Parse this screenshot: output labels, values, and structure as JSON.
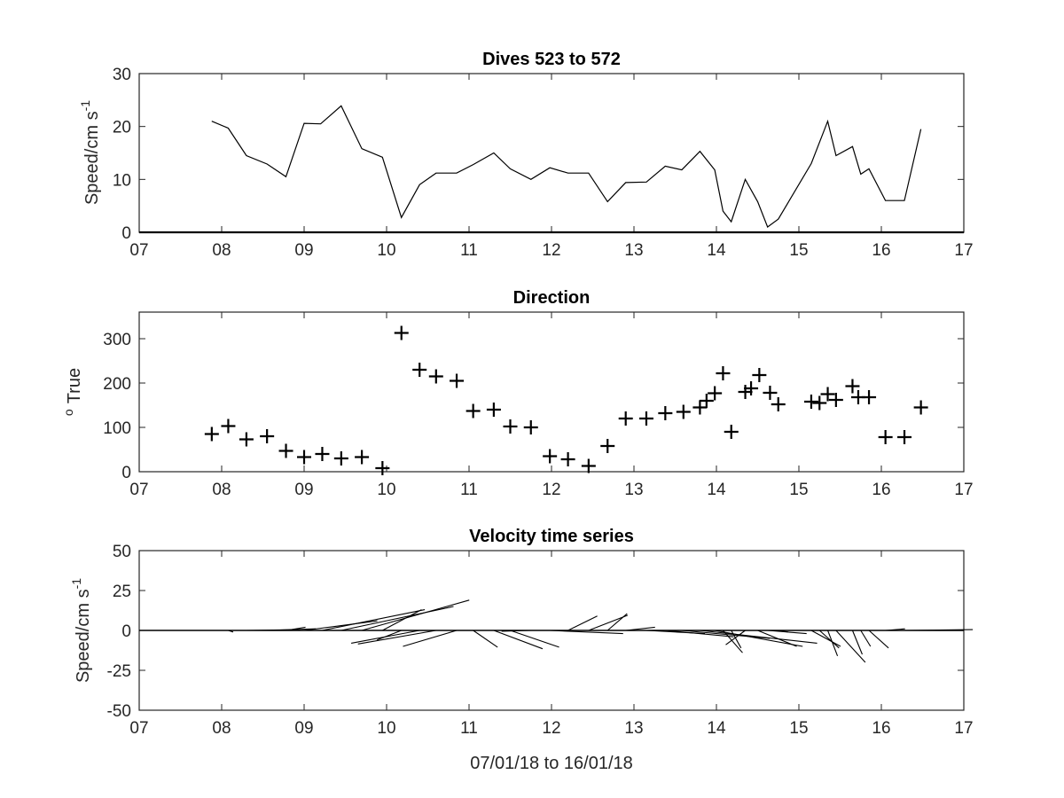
{
  "chart_data": [
    {
      "type": "line",
      "title": "Dives 523 to 572",
      "xlabel": "",
      "ylabel": "Speed/cm s",
      "ylabel_superscript": "-1",
      "xlim": [
        7,
        17
      ],
      "ylim": [
        0,
        30
      ],
      "xticks": [
        "07",
        "08",
        "09",
        "10",
        "11",
        "12",
        "13",
        "14",
        "15",
        "16",
        "17"
      ],
      "yticks": [
        "0",
        "10",
        "20",
        "30"
      ],
      "grid": false,
      "line_color": "#000000",
      "series": [
        {
          "x": [
            7.88,
            8.08,
            8.3,
            8.55,
            8.78,
            9.0,
            9.2,
            9.45,
            9.7,
            9.95,
            10.18,
            10.4,
            10.6,
            10.85,
            11.05,
            11.3,
            11.5,
            11.75,
            11.98,
            12.2,
            12.45,
            12.68,
            12.9,
            13.15,
            13.38,
            13.58,
            13.8,
            13.98,
            14.08,
            14.18,
            14.35,
            14.5,
            14.62,
            14.75,
            15.15,
            15.35,
            15.45,
            15.65,
            15.75,
            15.85,
            16.05,
            16.28,
            16.48
          ],
          "y": [
            21,
            19.7,
            14.5,
            12.9,
            10.5,
            20.6,
            20.5,
            23.9,
            15.8,
            14.2,
            2.8,
            9,
            11.2,
            11.2,
            12.8,
            15,
            12,
            10,
            12.2,
            11.2,
            11.2,
            5.8,
            9.4,
            9.5,
            12.5,
            11.8,
            15.3,
            11.8,
            4,
            2,
            10,
            5.8,
            1,
            2.5,
            13,
            21,
            14.5,
            16.2,
            11,
            12,
            6,
            6,
            19.5
          ]
        }
      ]
    },
    {
      "type": "scatter",
      "title": "Direction",
      "xlabel": "",
      "ylabel": "True",
      "ylabel_superscript": "o",
      "xlim": [
        7,
        17
      ],
      "ylim": [
        0,
        360
      ],
      "xticks": [
        "07",
        "08",
        "09",
        "10",
        "11",
        "12",
        "13",
        "14",
        "15",
        "16",
        "17"
      ],
      "yticks": [
        "0",
        "100",
        "200",
        "300"
      ],
      "grid": false,
      "marker": "+",
      "series": [
        {
          "x": [
            7.88,
            8.08,
            8.3,
            8.55,
            8.78,
            9.0,
            9.22,
            9.45,
            9.7,
            9.95,
            10.18,
            10.4,
            10.6,
            10.85,
            11.05,
            11.3,
            11.5,
            11.75,
            11.98,
            12.2,
            12.45,
            12.68,
            12.9,
            13.15,
            13.38,
            13.6,
            13.8,
            13.88,
            13.98,
            14.08,
            14.18,
            14.35,
            14.42,
            14.52,
            14.65,
            14.75,
            15.15,
            15.25,
            15.35,
            15.45,
            15.65,
            15.72,
            15.85,
            16.05,
            16.28,
            16.48
          ],
          "y": [
            85,
            103,
            73,
            80,
            47,
            33,
            40,
            30,
            33,
            8,
            313,
            230,
            215,
            205,
            137,
            140,
            102,
            100,
            35,
            28,
            13,
            58,
            120,
            120,
            132,
            135,
            145,
            160,
            177,
            222,
            90,
            180,
            188,
            218,
            178,
            152,
            158,
            155,
            175,
            162,
            193,
            168,
            168,
            78,
            78,
            145
          ]
        }
      ]
    },
    {
      "type": "line",
      "subtype": "stick",
      "title": "Velocity time series",
      "xlabel": "07/01/18 to 16/01/18",
      "ylabel": "Speed/cm s",
      "ylabel_superscript": "-1",
      "xlim": [
        7,
        17
      ],
      "ylim": [
        -50,
        50
      ],
      "xticks": [
        "07",
        "08",
        "09",
        "10",
        "11",
        "12",
        "13",
        "14",
        "15",
        "16",
        "17"
      ],
      "yticks": [
        "-50",
        "-25",
        "0",
        "25",
        "50"
      ],
      "grid": false,
      "zero_line": true,
      "sticks": {
        "x": [
          8.08,
          8.3,
          8.55,
          8.78,
          9.0,
          9.22,
          9.45,
          9.7,
          9.95,
          10.18,
          10.4,
          10.6,
          10.85,
          11.05,
          11.3,
          11.5,
          11.75,
          11.98,
          12.2,
          12.45,
          12.68,
          12.9,
          13.15,
          13.38,
          13.58,
          13.8,
          13.98,
          14.08,
          14.18,
          14.35,
          14.5,
          14.62,
          14.75,
          15.15,
          15.25,
          15.35,
          15.45,
          15.65,
          15.75,
          15.85,
          16.05,
          16.28
        ],
        "u": [
          0.5,
          5.5,
          5,
          2,
          7.5,
          10.5,
          11.5,
          11,
          4,
          -2.5,
          -7,
          -8,
          -5.5,
          2.5,
          5,
          5,
          -3,
          7.5,
          3,
          4,
          2,
          3,
          6,
          7,
          9,
          12,
          9,
          2,
          1,
          -2,
          4,
          4,
          1,
          3,
          2,
          1,
          3,
          1,
          1,
          2,
          2,
          7
        ],
        "v": [
          -1,
          0.5,
          1,
          2,
          6,
          13,
          15,
          19,
          13,
          -6,
          -8,
          -8.5,
          -10,
          -10.5,
          -11.5,
          -10.5,
          -0.5,
          -2,
          9,
          9.5,
          10.5,
          2,
          -2,
          -4,
          -5,
          -8,
          -10,
          -14,
          -11,
          -9,
          -10,
          -2,
          -1,
          -10,
          -11,
          -16,
          -20,
          -15,
          -10,
          -11,
          1,
          0.5
        ]
      }
    }
  ]
}
